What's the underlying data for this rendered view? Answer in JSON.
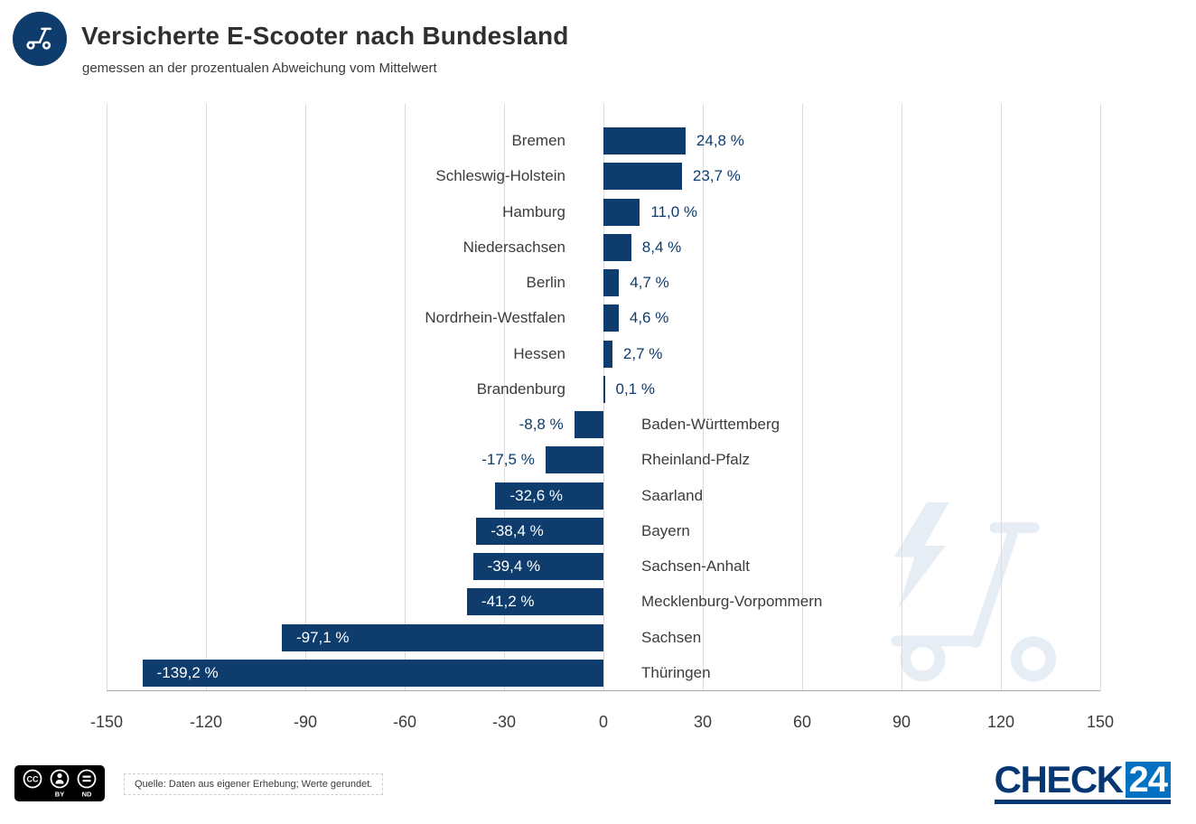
{
  "header": {
    "icon": "scooter-icon"
  },
  "chart_data": {
    "type": "bar",
    "orientation": "horizontal",
    "title": "Versicherte E-Scooter nach Bundesland",
    "subtitle": "gemessen an der prozentualen Abweichung vom Mittelwert",
    "categories": [
      "Bremen",
      "Schleswig-Holstein",
      "Hamburg",
      "Niedersachsen",
      "Berlin",
      "Nordrhein-Westfalen",
      "Hessen",
      "Brandenburg",
      "Baden-Württemberg",
      "Rheinland-Pfalz",
      "Saarland",
      "Bayern",
      "Sachsen-Anhalt",
      "Mecklenburg-Vorpommern",
      "Sachsen",
      "Thüringen"
    ],
    "values": [
      24.8,
      23.7,
      11.0,
      8.4,
      4.7,
      4.6,
      2.7,
      0.1,
      -8.8,
      -17.5,
      -32.6,
      -38.4,
      -39.4,
      -41.2,
      -97.1,
      -139.2
    ],
    "value_labels": [
      "24,8 %",
      "23,7 %",
      "11,0 %",
      "8,4 %",
      "4,7 %",
      "4,6 %",
      "2,7 %",
      "0,1 %",
      "-8,8 %",
      "-17,5 %",
      "-32,6 %",
      "-38,4 %",
      "-39,4 %",
      "-41,2 %",
      "-97,1 %",
      "-139,2 %"
    ],
    "xlim": [
      -150,
      150
    ],
    "x_ticks": [
      -150,
      -120,
      -90,
      -60,
      -30,
      0,
      30,
      60,
      90,
      120,
      150
    ],
    "grid": true,
    "legend": "none",
    "bar_color": "#0d3c6d"
  },
  "footer": {
    "license_badge": {
      "cc": "CC",
      "by": "BY",
      "nd": "ND"
    },
    "source": "Quelle: Daten aus eigener Erhebung; Werte gerundet.",
    "brand": {
      "check": "CHECK",
      "number": "24"
    }
  },
  "colors": {
    "navy": "#0d3c6d",
    "brand_blue": "#0271c2",
    "text_dark": "#3c3c3b",
    "grid": "#dcdcdc",
    "watermark": "#e6edf4",
    "value_text": "#0d3c6d"
  }
}
